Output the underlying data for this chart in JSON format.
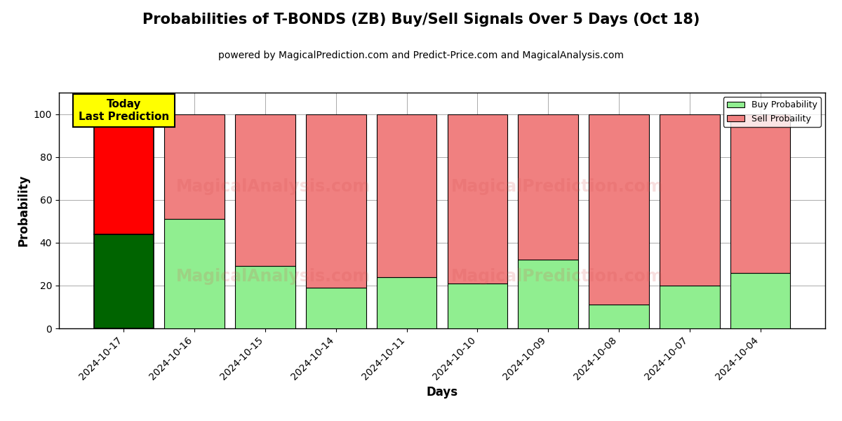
{
  "title": "Probabilities of T-BONDS (ZB) Buy/Sell Signals Over 5 Days (Oct 18)",
  "subtitle": "powered by MagicalPrediction.com and Predict-Price.com and MagicalAnalysis.com",
  "xlabel": "Days",
  "ylabel": "Probability",
  "dates": [
    "2024-10-17",
    "2024-10-16",
    "2024-10-15",
    "2024-10-14",
    "2024-10-11",
    "2024-10-10",
    "2024-10-09",
    "2024-10-08",
    "2024-10-07",
    "2024-10-04"
  ],
  "buy_values": [
    44,
    51,
    29,
    19,
    24,
    21,
    32,
    11,
    20,
    26
  ],
  "sell_values": [
    56,
    49,
    71,
    81,
    76,
    79,
    68,
    89,
    80,
    74
  ],
  "today_buy_color": "#006400",
  "today_sell_color": "#ff0000",
  "buy_color": "#90EE90",
  "sell_color": "#F08080",
  "today_label_bg": "#ffff00",
  "today_label_text": "Today\nLast Prediction",
  "ylim": [
    0,
    110
  ],
  "dashed_line_y": 110,
  "legend_buy": "Buy Probability",
  "legend_sell": "Sell Probaility",
  "bar_width": 0.85,
  "title_fontsize": 15,
  "subtitle_fontsize": 10,
  "axis_label_fontsize": 12,
  "tick_fontsize": 10,
  "background_color": "#ffffff",
  "grid_color": "#aaaaaa",
  "watermark1": "MagicalAnalysis.com",
  "watermark2": "MagicalPrediction.com",
  "watermark_color": "#d9534f",
  "watermark_alpha": 0.18,
  "watermark_fontsize": 17
}
